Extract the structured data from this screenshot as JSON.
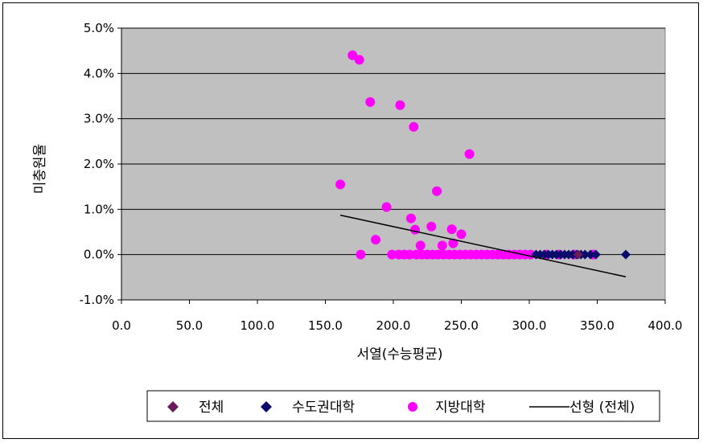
{
  "chart_data": {
    "type": "scatter",
    "xlabel": "서열(수능평균)",
    "ylabel": "미충원율",
    "xlim": [
      0,
      400
    ],
    "ylim": [
      -1.0,
      5.0
    ],
    "x_ticks": [
      "0.0",
      "50.0",
      "100.0",
      "150.0",
      "200.0",
      "250.0",
      "300.0",
      "350.0",
      "400.0"
    ],
    "y_ticks": [
      "-1.0%",
      "0.0%",
      "1.0%",
      "2.0%",
      "3.0%",
      "4.0%",
      "5.0%"
    ],
    "grid": "horizontal",
    "plot_background": "#c0c0c0",
    "legend": {
      "position": "bottom",
      "entries": [
        "전체",
        "수도권대학",
        "지방대학",
        "선형 (전체)"
      ]
    },
    "series": [
      {
        "name": "전체",
        "marker": "diamond",
        "color": "#6b1a5a",
        "points": [
          [
            336,
            0.0
          ]
        ]
      },
      {
        "name": "수도권대학",
        "marker": "diamond",
        "color": "#0b0b6e",
        "points": [
          [
            305,
            0.0
          ],
          [
            308,
            0.0
          ],
          [
            311,
            0.0
          ],
          [
            314,
            0.0
          ],
          [
            317,
            0.0
          ],
          [
            320,
            0.0
          ],
          [
            323,
            0.0
          ],
          [
            326,
            0.0
          ],
          [
            329,
            0.0
          ],
          [
            332,
            0.0
          ],
          [
            335,
            0.0
          ],
          [
            338,
            0.0
          ],
          [
            341,
            0.0
          ],
          [
            345,
            0.0
          ],
          [
            349,
            0.0
          ],
          [
            371,
            0.0
          ]
        ]
      },
      {
        "name": "지방대학",
        "marker": "circle",
        "color": "#ff00ff",
        "points": [
          [
            161,
            1.55
          ],
          [
            170,
            4.4
          ],
          [
            175,
            4.3
          ],
          [
            183,
            3.37
          ],
          [
            205,
            3.3
          ],
          [
            215,
            2.82
          ],
          [
            256,
            2.22
          ],
          [
            232,
            1.4
          ],
          [
            195,
            1.05
          ],
          [
            213,
            0.8
          ],
          [
            216,
            0.55
          ],
          [
            228,
            0.62
          ],
          [
            243,
            0.56
          ],
          [
            250,
            0.45
          ],
          [
            187,
            0.33
          ],
          [
            220,
            0.2
          ],
          [
            236,
            0.2
          ],
          [
            244,
            0.25
          ],
          [
            176,
            0.0
          ],
          [
            199,
            0.0
          ],
          [
            204,
            0.0
          ],
          [
            208,
            0.0
          ],
          [
            212,
            0.0
          ],
          [
            217,
            0.0
          ],
          [
            221,
            0.0
          ],
          [
            225,
            0.0
          ],
          [
            229,
            0.0
          ],
          [
            233,
            0.0
          ],
          [
            237,
            0.0
          ],
          [
            241,
            0.0
          ],
          [
            245,
            0.0
          ],
          [
            249,
            0.0
          ],
          [
            253,
            0.0
          ],
          [
            257,
            0.0
          ],
          [
            261,
            0.0
          ],
          [
            265,
            0.0
          ],
          [
            269,
            0.0
          ],
          [
            273,
            0.0
          ],
          [
            277,
            0.0
          ],
          [
            281,
            0.0
          ],
          [
            285,
            0.0
          ],
          [
            289,
            0.0
          ],
          [
            293,
            0.0
          ],
          [
            297,
            0.0
          ],
          [
            301,
            0.0
          ],
          [
            313,
            0.0
          ],
          [
            322,
            0.0
          ],
          [
            333,
            0.0
          ],
          [
            347,
            0.0
          ]
        ]
      },
      {
        "name": "선형 (전체)",
        "type": "line",
        "color": "#000000",
        "points": [
          [
            161,
            0.87
          ],
          [
            371,
            -0.49
          ]
        ]
      }
    ]
  }
}
